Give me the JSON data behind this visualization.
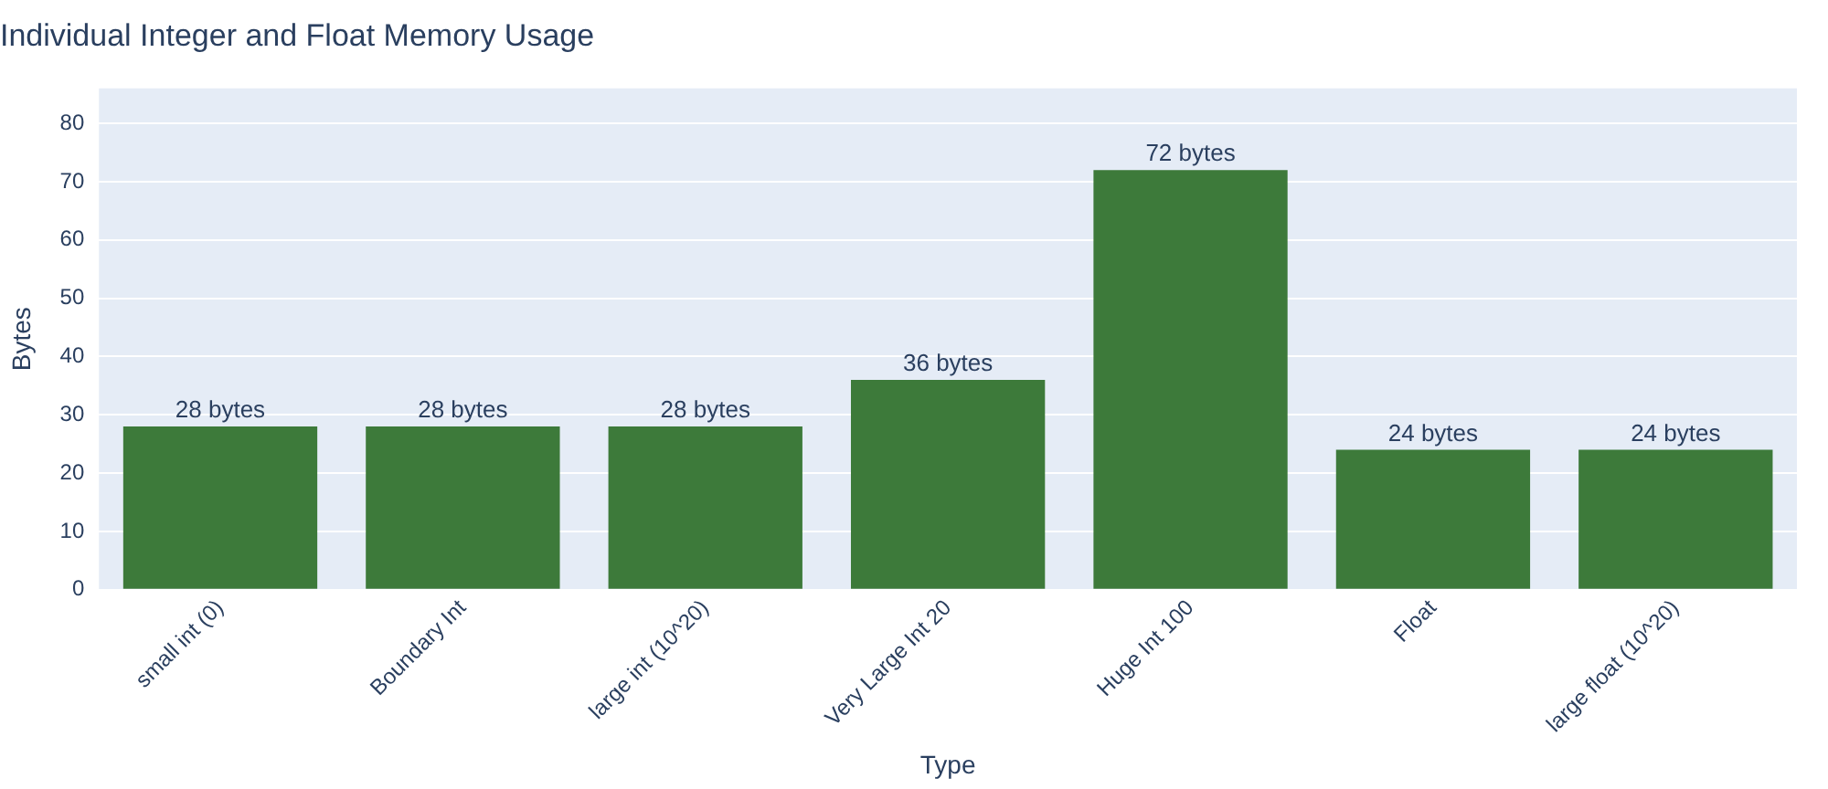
{
  "chart_data": {
    "type": "bar",
    "title": "Individual Integer and Float Memory Usage",
    "xlabel": "Type",
    "ylabel": "Bytes",
    "categories": [
      "small int (0)",
      "Boundary Int",
      "large int (10^20)",
      "Very Large Int 20",
      "Huge Int 100",
      "Float",
      "large float (10^20)"
    ],
    "values": [
      28,
      28,
      28,
      36,
      72,
      24,
      24
    ],
    "value_labels": [
      "28 bytes",
      "28 bytes",
      "28 bytes",
      "36 bytes",
      "72 bytes",
      "24 bytes",
      "24 bytes"
    ],
    "color": "#3d7a3a",
    "ylim": [
      0,
      86
    ],
    "yticks": [
      0,
      10,
      20,
      30,
      40,
      50,
      60,
      70,
      80
    ],
    "grid": "y",
    "legend": false
  }
}
